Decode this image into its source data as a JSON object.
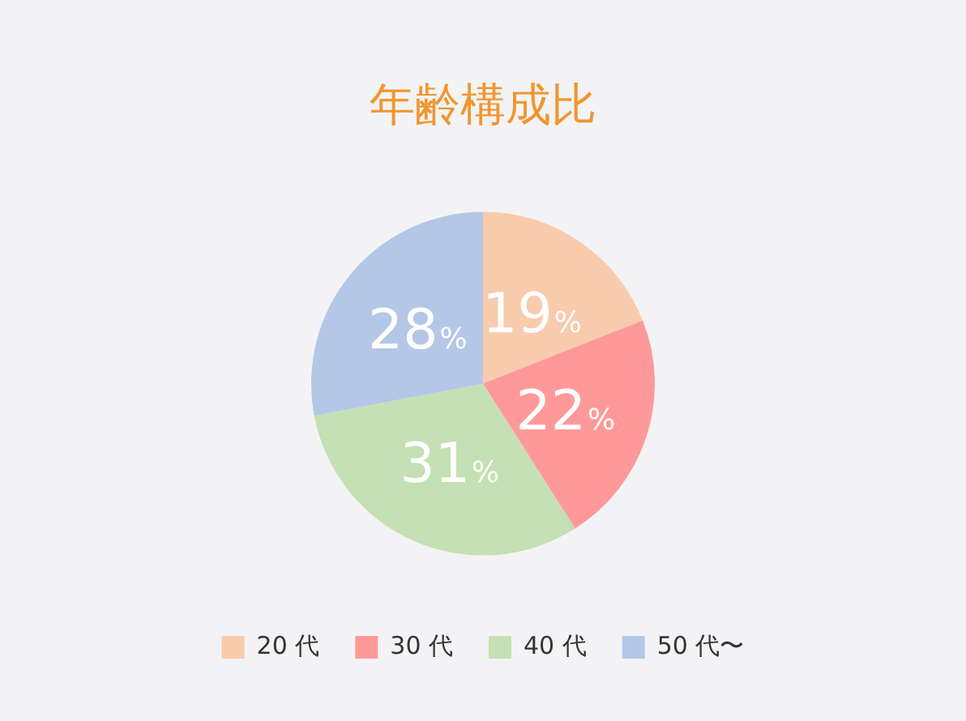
{
  "chart_data": {
    "type": "pie",
    "title": "年齢構成比",
    "categories": [
      "20 代",
      "30 代",
      "40 代",
      "50 代〜"
    ],
    "values": [
      19,
      22,
      31,
      28
    ],
    "colors": [
      "#f8cbad",
      "#ff9999",
      "#c5e0b4",
      "#b4c7e7"
    ],
    "value_labels": [
      "19%",
      "22%",
      "31%",
      "28%"
    ],
    "legend": "bottom"
  }
}
